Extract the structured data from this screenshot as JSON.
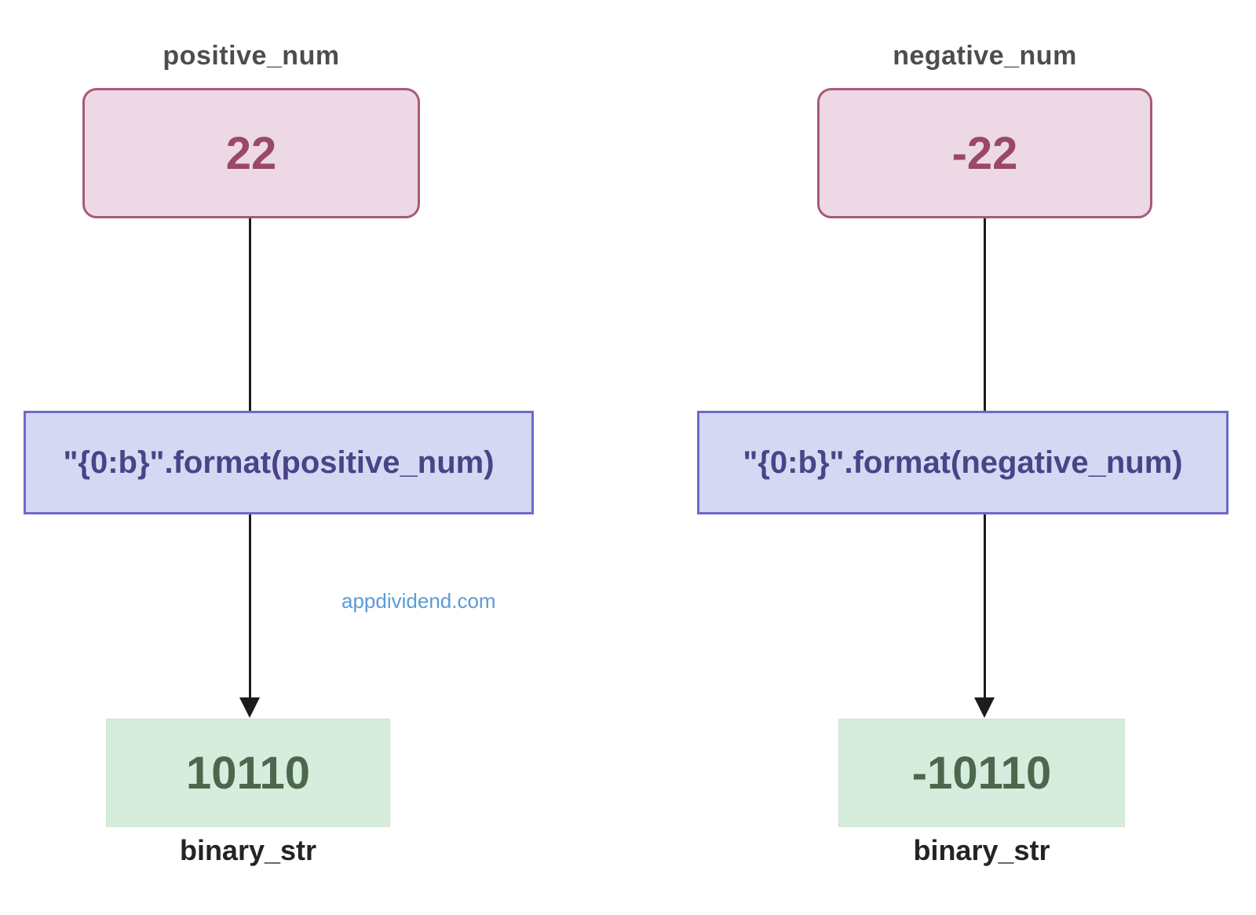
{
  "diagram": {
    "watermark": "appdividend.com",
    "flows": [
      {
        "input_label": "positive_num",
        "input_value": "22",
        "code": "\"{0:b}\".format(positive_num)",
        "output_value": "10110",
        "output_label": "binary_str"
      },
      {
        "input_label": "negative_num",
        "input_value": "-22",
        "code": "\"{0:b}\".format(negative_num)",
        "output_value": "-10110",
        "output_label": "binary_str"
      }
    ]
  },
  "colors": {
    "input_box_fill": "#ecd9e5",
    "input_box_border": "#ab5878",
    "input_text": "#9a4768",
    "code_box_fill": "#d5d8f3",
    "code_box_border": "#6f6ac6",
    "code_text": "#4a4387",
    "output_box_fill": "#d6ecdc",
    "output_box_border": "#cbe4d2",
    "output_text": "#4b684e",
    "label_color": "#4d4d4d",
    "output_label_color": "#242424",
    "arrow_color": "#1c1c1e",
    "watermark_color": "#5b9bd5"
  }
}
